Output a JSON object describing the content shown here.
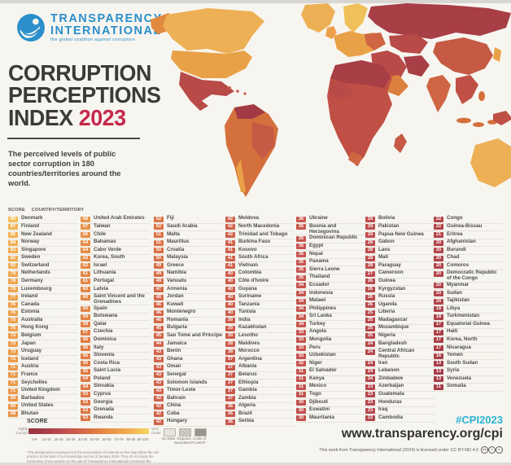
{
  "header": {
    "logo_line1": "TRANSPARENCY",
    "logo_line2": "INTERNATIONAL",
    "tagline": "the global coalition against corruption",
    "title_line1": "CORRUPTION",
    "title_line2": "PERCEPTIONS",
    "title_line3": "INDEX",
    "title_year": "2023",
    "subtitle": "The perceived levels of public sector corruption in 180 countries/territories around the world."
  },
  "colors": {
    "brand_blue": "#2a8fcb",
    "title_red": "#c5294b",
    "hashtag_teal": "#2bb3d4"
  },
  "score_scale": {
    "stops": [
      [
        0,
        "#96323f"
      ],
      [
        15,
        "#a83e48"
      ],
      [
        25,
        "#b9494e"
      ],
      [
        35,
        "#c8564e"
      ],
      [
        45,
        "#d4664a"
      ],
      [
        55,
        "#df7a43"
      ],
      [
        65,
        "#e78e46"
      ],
      [
        75,
        "#eda04c"
      ],
      [
        85,
        "#f1b153"
      ],
      [
        100,
        "#f6d45c"
      ]
    ]
  },
  "table": {
    "score_header": "SCORE",
    "country_header": "COUNTRY/TERRITORY",
    "columns": [
      [
        [
          90,
          "Denmark"
        ],
        [
          87,
          "Finland"
        ],
        [
          85,
          "New Zealand"
        ],
        [
          84,
          "Norway"
        ],
        [
          83,
          "Singapore"
        ],
        [
          82,
          "Sweden"
        ],
        [
          82,
          "Switzerland"
        ],
        [
          79,
          "Netherlands"
        ],
        [
          78,
          "Germany"
        ],
        [
          78,
          "Luxembourg"
        ],
        [
          77,
          "Ireland"
        ],
        [
          76,
          "Canada"
        ],
        [
          76,
          "Estonia"
        ],
        [
          75,
          "Australia"
        ],
        [
          75,
          "Hong Kong"
        ],
        [
          73,
          "Belgium"
        ],
        [
          73,
          "Japan"
        ],
        [
          73,
          "Uruguay"
        ],
        [
          72,
          "Iceland"
        ],
        [
          71,
          "Austria"
        ],
        [
          71,
          "France"
        ],
        [
          71,
          "Seychelles"
        ],
        [
          71,
          "United Kingdom"
        ],
        [
          69,
          "Barbados"
        ],
        [
          69,
          "United States"
        ],
        [
          68,
          "Bhutan"
        ]
      ],
      [
        [
          68,
          "United Arab Emirates"
        ],
        [
          67,
          "Taiwan"
        ],
        [
          66,
          "Chile"
        ],
        [
          64,
          "Bahamas"
        ],
        [
          64,
          "Cabo Verde"
        ],
        [
          63,
          "Korea, South"
        ],
        [
          62,
          "Israel"
        ],
        [
          61,
          "Lithuania"
        ],
        [
          61,
          "Portugal"
        ],
        [
          60,
          "Latvia"
        ],
        [
          60,
          "Saint Vincent and the Grenadines"
        ],
        [
          60,
          "Spain"
        ],
        [
          59,
          "Botswana"
        ],
        [
          58,
          "Qatar"
        ],
        [
          57,
          "Czechia"
        ],
        [
          56,
          "Dominica"
        ],
        [
          56,
          "Italy"
        ],
        [
          56,
          "Slovenia"
        ],
        [
          55,
          "Costa Rica"
        ],
        [
          55,
          "Saint Lucia"
        ],
        [
          54,
          "Poland"
        ],
        [
          54,
          "Slovakia"
        ],
        [
          53,
          "Cyprus"
        ],
        [
          53,
          "Georgia"
        ],
        [
          53,
          "Grenada"
        ],
        [
          53,
          "Rwanda"
        ]
      ],
      [
        [
          52,
          "Fiji"
        ],
        [
          52,
          "Saudi Arabia"
        ],
        [
          51,
          "Malta"
        ],
        [
          51,
          "Mauritius"
        ],
        [
          50,
          "Croatia"
        ],
        [
          50,
          "Malaysia"
        ],
        [
          49,
          "Greece"
        ],
        [
          49,
          "Namibia"
        ],
        [
          48,
          "Vanuatu"
        ],
        [
          47,
          "Armenia"
        ],
        [
          46,
          "Jordan"
        ],
        [
          46,
          "Kuwait"
        ],
        [
          46,
          "Montenegro"
        ],
        [
          46,
          "Romania"
        ],
        [
          45,
          "Bulgaria"
        ],
        [
          45,
          "Sao Tome and Principe"
        ],
        [
          44,
          "Jamaica"
        ],
        [
          43,
          "Benin"
        ],
        [
          43,
          "Ghana"
        ],
        [
          43,
          "Oman"
        ],
        [
          43,
          "Senegal"
        ],
        [
          43,
          "Solomon Islands"
        ],
        [
          43,
          "Timor-Leste"
        ],
        [
          42,
          "Bahrain"
        ],
        [
          42,
          "China"
        ],
        [
          42,
          "Cuba"
        ],
        [
          42,
          "Hungary"
        ]
      ],
      [
        [
          42,
          "Moldova"
        ],
        [
          42,
          "North Macedonia"
        ],
        [
          42,
          "Trinidad and Tobago"
        ],
        [
          41,
          "Burkina Faso"
        ],
        [
          41,
          "Kosovo"
        ],
        [
          41,
          "South Africa"
        ],
        [
          41,
          "Vietnam"
        ],
        [
          40,
          "Colombia"
        ],
        [
          40,
          "Côte d'Ivoire"
        ],
        [
          40,
          "Guyana"
        ],
        [
          40,
          "Suriname"
        ],
        [
          40,
          "Tanzania"
        ],
        [
          40,
          "Tunisia"
        ],
        [
          39,
          "India"
        ],
        [
          39,
          "Kazakhstan"
        ],
        [
          39,
          "Lesotho"
        ],
        [
          39,
          "Maldives"
        ],
        [
          38,
          "Morocco"
        ],
        [
          37,
          "Argentina"
        ],
        [
          37,
          "Albania"
        ],
        [
          37,
          "Belarus"
        ],
        [
          37,
          "Ethiopia"
        ],
        [
          37,
          "Gambia"
        ],
        [
          37,
          "Zambia"
        ],
        [
          36,
          "Algeria"
        ],
        [
          36,
          "Brazil"
        ],
        [
          36,
          "Serbia"
        ]
      ],
      [
        [
          36,
          "Ukraine"
        ],
        [
          35,
          "Bosnia and Herzegovina"
        ],
        [
          35,
          "Dominican Republic"
        ],
        [
          35,
          "Egypt"
        ],
        [
          35,
          "Nepal"
        ],
        [
          35,
          "Panama"
        ],
        [
          35,
          "Sierra Leone"
        ],
        [
          35,
          "Thailand"
        ],
        [
          34,
          "Ecuador"
        ],
        [
          34,
          "Indonesia"
        ],
        [
          34,
          "Malawi"
        ],
        [
          34,
          "Philippines"
        ],
        [
          34,
          "Sri Lanka"
        ],
        [
          34,
          "Turkey"
        ],
        [
          33,
          "Angola"
        ],
        [
          33,
          "Mongolia"
        ],
        [
          33,
          "Peru"
        ],
        [
          33,
          "Uzbekistan"
        ],
        [
          32,
          "Niger"
        ],
        [
          31,
          "El Salvador"
        ],
        [
          31,
          "Kenya"
        ],
        [
          31,
          "Mexico"
        ],
        [
          31,
          "Togo"
        ],
        [
          30,
          "Djibouti"
        ],
        [
          30,
          "Eswatini"
        ],
        [
          30,
          "Mauritania"
        ]
      ],
      [
        [
          29,
          "Bolivia"
        ],
        [
          29,
          "Pakistan"
        ],
        [
          29,
          "Papua New Guinea"
        ],
        [
          28,
          "Gabon"
        ],
        [
          28,
          "Laos"
        ],
        [
          28,
          "Mali"
        ],
        [
          28,
          "Paraguay"
        ],
        [
          27,
          "Cameroon"
        ],
        [
          26,
          "Guinea"
        ],
        [
          26,
          "Kyrgyzstan"
        ],
        [
          26,
          "Russia"
        ],
        [
          26,
          "Uganda"
        ],
        [
          25,
          "Liberia"
        ],
        [
          25,
          "Madagascar"
        ],
        [
          25,
          "Mozambique"
        ],
        [
          25,
          "Nigeria"
        ],
        [
          24,
          "Bangladesh"
        ],
        [
          24,
          "Central African Republic"
        ],
        [
          24,
          "Iran"
        ],
        [
          24,
          "Lebanon"
        ],
        [
          24,
          "Zimbabwe"
        ],
        [
          23,
          "Azerbaijan"
        ],
        [
          23,
          "Guatemala"
        ],
        [
          23,
          "Honduras"
        ],
        [
          23,
          "Iraq"
        ],
        [
          22,
          "Cambodia"
        ]
      ],
      [
        [
          22,
          "Congo"
        ],
        [
          22,
          "Guinea-Bissau"
        ],
        [
          21,
          "Eritrea"
        ],
        [
          20,
          "Afghanistan"
        ],
        [
          20,
          "Burundi"
        ],
        [
          20,
          "Chad"
        ],
        [
          20,
          "Comoros"
        ],
        [
          20,
          "Democratic Republic of the Congo"
        ],
        [
          20,
          "Myanmar"
        ],
        [
          20,
          "Sudan"
        ],
        [
          20,
          "Tajikistan"
        ],
        [
          18,
          "Libya"
        ],
        [
          18,
          "Turkmenistan"
        ],
        [
          17,
          "Equatorial Guinea"
        ],
        [
          17,
          "Haiti"
        ],
        [
          17,
          "Korea, North"
        ],
        [
          17,
          "Nicaragua"
        ],
        [
          16,
          "Yemen"
        ],
        [
          13,
          "South Sudan"
        ],
        [
          13,
          "Syria"
        ],
        [
          13,
          "Venezuela"
        ],
        [
          11,
          "Somalia"
        ]
      ]
    ]
  },
  "legend": {
    "title": "SCORE",
    "left_label": "Highly\nCorrupt",
    "right_label": "Very\nClean",
    "ticks": [
      "0-9",
      "10-19",
      "20-29",
      "30-39",
      "40-49",
      "50-59",
      "60-69",
      "70-79",
      "80-89",
      "90-100"
    ],
    "no_data_label": "No Data",
    "disputed_label": "Disputed\nBoundaries*",
    "limits_label": "Limits of\nControl*",
    "disclaimer": "*The designations employed and the presentation of material on this map follow the UN practice to the best of our knowledge and as of January 2024. They do not imply the expression of any opinion on the part of Transparency International concerning the legal status of any country, territory, city or area or of its authorities or concerning the delimitation of its frontiers or boundaries."
  },
  "footer": {
    "hashtag": "#CPI2023",
    "url": "www.transparency.org/cpi",
    "license": "This work from Transparency International (2024) is licensed under CC BY-ND 4.0",
    "license_icons": [
      "cc",
      "i",
      "="
    ]
  }
}
